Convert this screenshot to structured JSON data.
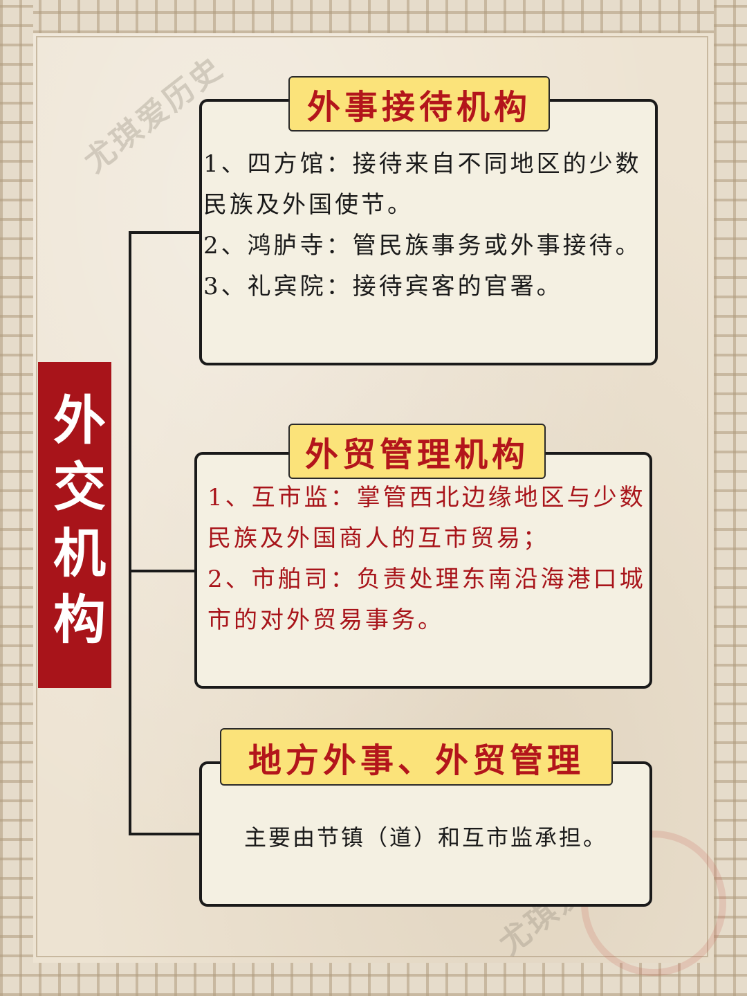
{
  "watermark": "尤琪爱历史",
  "main_title": "外交机构",
  "sections": [
    {
      "title": "外事接待机构",
      "items": [
        "1、四方馆：接待来自不同地区的少数民族及外国使节。",
        "2、鸿胪寺：管民族事务或外事接待。",
        "3、礼宾院：接待宾客的官署。"
      ]
    },
    {
      "title": "外贸管理机构",
      "items": [
        "1、互市监：掌管西北边缘地区与少数民族及外国商人的互市贸易；",
        "2、市舶司：负责处理东南沿海港口城市的对外贸易事务。"
      ]
    },
    {
      "title": "地方外事、外贸管理",
      "items": [
        "主要由节镇（道）和互市监承担。"
      ]
    }
  ],
  "colors": {
    "title_bg": "#a8141a",
    "label_bg": "#fbe37a",
    "label_text": "#b3151b",
    "box_bg": "#f4f0e2",
    "red_text": "#a8141a",
    "line": "#1a1a1a"
  }
}
